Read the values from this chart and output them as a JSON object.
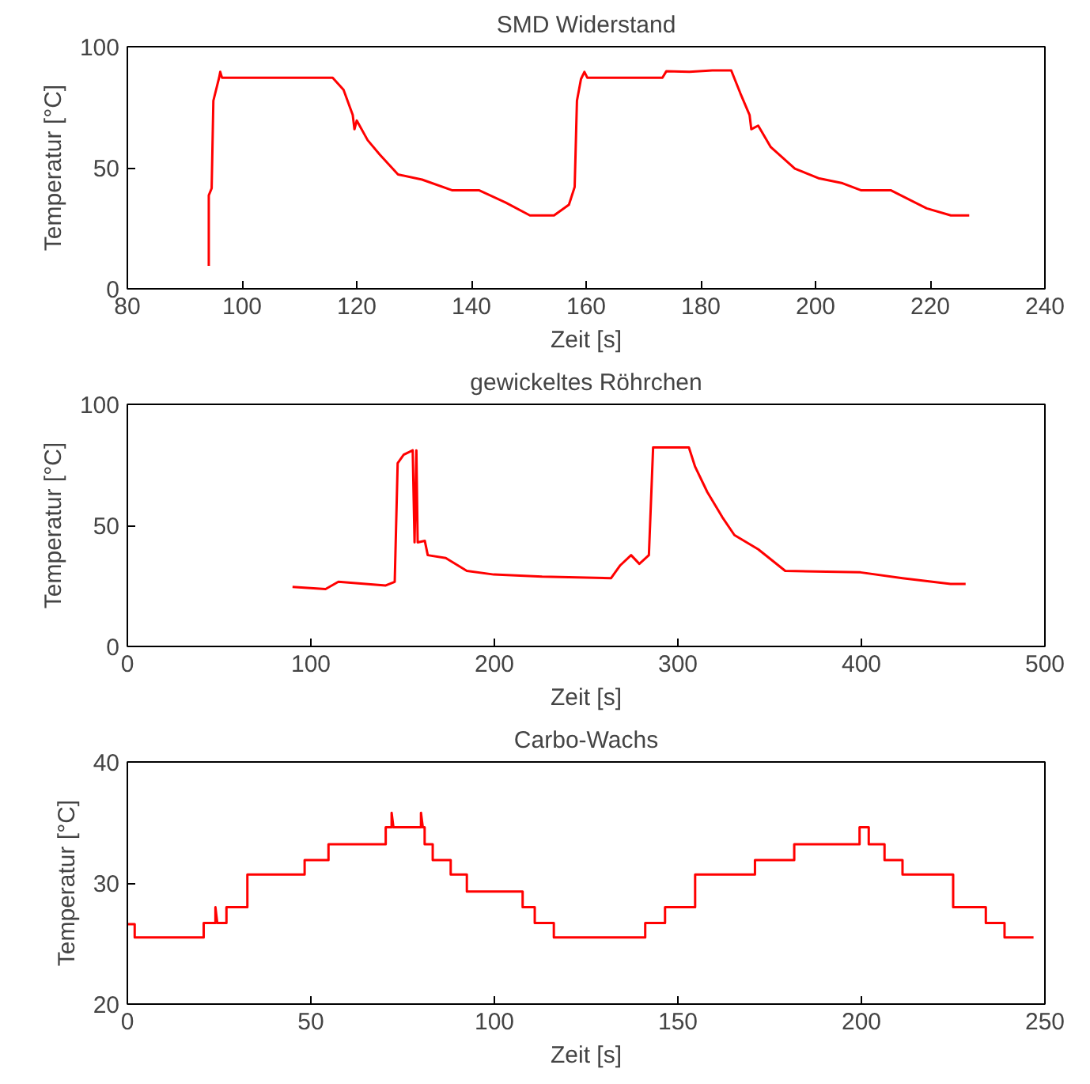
{
  "chart_data": [
    {
      "type": "line",
      "title": "SMD Widerstand",
      "xlabel": "Zeit [s]",
      "ylabel": "Temperatur [°C]",
      "xlim": [
        80,
        240
      ],
      "xticks": [
        80,
        100,
        120,
        140,
        160,
        180,
        200,
        220,
        240
      ],
      "ylim": [
        0,
        100
      ],
      "yticks": [
        0,
        50,
        100
      ],
      "grid": false,
      "series": [
        {
          "color": "#ff0000",
          "x": [
            94.2,
            94.2,
            94.7,
            95.0,
            96.0,
            96.2,
            96.5,
            115.8,
            117.7,
            119.3,
            119.6,
            120.0,
            121.9,
            124,
            127.2,
            131.4,
            136.6,
            141.3,
            146,
            150.2,
            154.4,
            157,
            158,
            158.4,
            159.1,
            159.7,
            160.2,
            173.3,
            174,
            178,
            182,
            185.3,
            186.9,
            188.5,
            188.8,
            190,
            192.2,
            196.4,
            200.5,
            204.7,
            207.9,
            213.1,
            219.4,
            223.6,
            226.8
          ],
          "values": [
            9.5,
            38.6,
            41.5,
            77.7,
            87.2,
            89.6,
            87.2,
            87.2,
            82.2,
            71.8,
            65.9,
            69.5,
            61.4,
            55.5,
            47.2,
            45.1,
            40.7,
            40.7,
            35.6,
            30.3,
            30.3,
            34.7,
            42.1,
            77.7,
            86.6,
            89.6,
            87.2,
            87.2,
            89.9,
            89.6,
            90.2,
            90.2,
            80.7,
            71.8,
            65.9,
            67.4,
            58.5,
            49.6,
            45.7,
            43.6,
            40.7,
            40.7,
            33.2,
            30.3,
            30.3
          ]
        }
      ]
    },
    {
      "type": "line",
      "title": "gewickeltes Röhrchen",
      "xlabel": "Zeit [s]",
      "ylabel": "Temperatur [°C]",
      "xlim": [
        0,
        500
      ],
      "xticks": [
        0,
        100,
        200,
        300,
        400,
        500
      ],
      "ylim": [
        0,
        100
      ],
      "yticks": [
        0,
        50,
        100
      ],
      "grid": false,
      "series": [
        {
          "color": "#ff0000",
          "x": [
            90,
            108,
            115,
            140.8,
            145.7,
            147.3,
            150.6,
            155.5,
            156.5,
            157.5,
            158.2,
            162.1,
            163.7,
            173.5,
            185,
            199.7,
            226,
            263.6,
            268.6,
            274.5,
            279,
            284.2,
            286.5,
            306,
            309.4,
            316,
            324.2,
            330.8,
            343.8,
            358.5,
            399.5,
            422.4,
            448.6,
            456.8
          ],
          "values": [
            24.6,
            23.7,
            26.7,
            25.2,
            26.7,
            75.7,
            79.2,
            81,
            43,
            81,
            43,
            43.6,
            37.7,
            36.5,
            31.2,
            29.7,
            28.8,
            28.2,
            33.5,
            37.7,
            34.1,
            37.7,
            82.2,
            82.2,
            74.2,
            63.8,
            53.4,
            46,
            40.1,
            31.2,
            30.6,
            28.2,
            25.8,
            25.8
          ]
        }
      ]
    },
    {
      "type": "line",
      "title": "Carbo-Wachs",
      "xlabel": "Zeit [s]",
      "ylabel": "Temperatur [°C]",
      "xlim": [
        0,
        250
      ],
      "xticks": [
        0,
        50,
        100,
        150,
        200,
        250
      ],
      "ylim": [
        20,
        40
      ],
      "yticks": [
        20,
        30,
        40
      ],
      "grid": false,
      "series": [
        {
          "color": "#ff0000",
          "x": [
            0,
            2,
            2,
            20.8,
            20.8,
            24,
            24,
            24.5,
            27,
            27,
            32.7,
            32.7,
            48.3,
            48.3,
            54.8,
            54.8,
            70.4,
            70.4,
            72,
            72,
            72.5,
            80,
            80,
            80.5,
            81,
            81,
            83.2,
            83.2,
            88.1,
            88.1,
            92.5,
            92.5,
            107.7,
            107.7,
            111,
            111,
            116.2,
            116.2,
            141.1,
            141.1,
            146.5,
            146.5,
            154.7,
            154.7,
            171,
            171,
            181.7,
            181.7,
            199.5,
            199.5,
            202,
            202,
            206.3,
            206.3,
            211.2,
            211.2,
            225,
            225,
            233.9,
            233.9,
            239,
            239,
            246.9
          ],
          "values": [
            26.6,
            26.6,
            25.5,
            25.5,
            26.7,
            26.7,
            28.0,
            26.7,
            26.7,
            28.0,
            28.0,
            30.7,
            30.7,
            31.9,
            31.9,
            33.2,
            33.2,
            34.6,
            34.6,
            35.8,
            34.6,
            34.6,
            35.8,
            34.6,
            34.6,
            33.2,
            33.2,
            31.9,
            31.9,
            30.7,
            30.7,
            29.3,
            29.3,
            28.0,
            28.0,
            26.7,
            26.7,
            25.5,
            25.5,
            26.7,
            26.7,
            28.0,
            28.0,
            30.7,
            30.7,
            31.9,
            31.9,
            33.2,
            33.2,
            34.6,
            34.6,
            33.2,
            33.2,
            31.9,
            31.9,
            30.7,
            30.7,
            28.0,
            28.0,
            26.7,
            26.7,
            25.5,
            25.5
          ]
        }
      ]
    }
  ]
}
